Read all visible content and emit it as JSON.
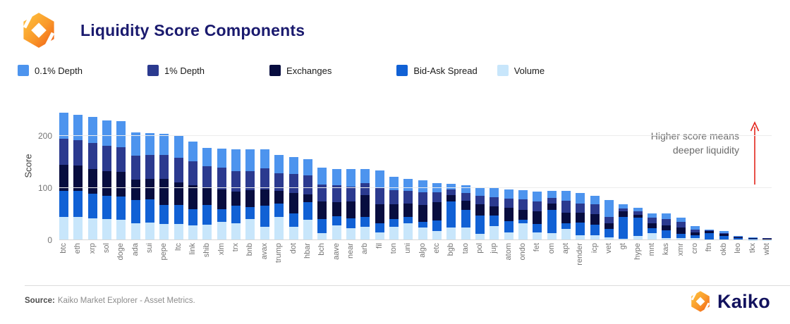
{
  "header": {
    "title": "Liquidity Score Components"
  },
  "footer": {
    "source_label": "Source:",
    "source_text": "Kaiko Market Explorer - Asset Metrics.",
    "brand": "Kaiko"
  },
  "chart_data": {
    "type": "bar",
    "stacked": true,
    "title": "Liquidity Score Components",
    "ylabel": "Score",
    "y_ticks": [
      0,
      100,
      200
    ],
    "ylim": [
      0,
      258
    ],
    "grid": "horizontal",
    "legend_position": "top",
    "annotation": {
      "line1": "Higher score means",
      "line2": "deeper liquidity",
      "arrow": "red-up-arrow"
    },
    "categories": [
      "btc",
      "eth",
      "xrp",
      "sol",
      "doge",
      "ada",
      "sui",
      "pepe",
      "ltc",
      "link",
      "shib",
      "xlm",
      "trx",
      "bnb",
      "avax",
      "trump",
      "dot",
      "hbar",
      "bch",
      "aave",
      "near",
      "arb",
      "fil",
      "ton",
      "uni",
      "algo",
      "etc",
      "bgb",
      "tao",
      "pol",
      "jup",
      "atom",
      "ondo",
      "fet",
      "om",
      "apt",
      "render",
      "icp",
      "vet",
      "gt",
      "hype",
      "mnt",
      "kas",
      "xmr",
      "cro",
      "ftn",
      "okb",
      "leo",
      "tkx",
      "wbt"
    ],
    "stack_order_bottom_to_top": [
      "Volume",
      "Bid-Ask Spread",
      "Exchanges",
      "1% Depth",
      "0.1% Depth"
    ],
    "series": [
      {
        "name": "0.1% Depth",
        "color": "#4D94EE",
        "values": [
          50,
          49,
          50,
          49,
          49,
          45,
          41,
          41,
          42,
          38,
          35,
          37,
          42,
          42,
          36,
          35,
          32,
          31,
          32,
          32,
          34,
          27,
          32,
          26,
          24,
          23,
          18,
          11,
          14,
          17,
          19,
          17,
          18,
          18,
          13,
          18,
          19,
          16,
          32,
          8,
          7,
          9,
          11,
          8,
          7,
          2,
          3,
          1,
          1,
          0.5
        ]
      },
      {
        "name": "1% Depth",
        "color": "#2B3A8F",
        "values": [
          51,
          49,
          49,
          49,
          48,
          46,
          46,
          46,
          47,
          46,
          40,
          41,
          40,
          37,
          40,
          34,
          36,
          37,
          33,
          32,
          29,
          24,
          33,
          27,
          24,
          25,
          19,
          11,
          15,
          16,
          18,
          18,
          20,
          19,
          11,
          23,
          18,
          19,
          12,
          6,
          6,
          10,
          12,
          11,
          5,
          2,
          2,
          1,
          0.5,
          0.5
        ]
      },
      {
        "name": "Exchanges",
        "color": "#070D3F",
        "values": [
          49,
          49,
          48,
          47,
          47,
          39,
          40,
          49,
          44,
          45,
          35,
          38,
          27,
          32,
          32,
          25,
          40,
          15,
          33,
          27,
          32,
          42,
          36,
          29,
          26,
          32,
          35,
          12,
          18,
          21,
          17,
          25,
          19,
          25,
          12,
          20,
          19,
          20,
          12,
          11,
          6,
          10,
          9,
          12,
          5,
          4,
          4,
          2,
          1,
          1
        ]
      },
      {
        "name": "Bid-Ask Spread",
        "color": "#1161D5",
        "values": [
          50,
          50,
          47,
          45,
          45,
          44,
          44,
          37,
          36,
          32,
          37,
          25,
          34,
          24,
          40,
          26,
          25,
          34,
          27,
          18,
          19,
          18,
          18,
          14,
          12,
          11,
          20,
          49,
          34,
          36,
          21,
          22,
          6,
          16,
          44,
          12,
          24,
          21,
          16,
          41,
          35,
          10,
          15,
          8,
          6,
          11,
          6,
          3,
          2,
          1.5
        ]
      },
      {
        "name": "Volume",
        "color": "#C8E6FB",
        "values": [
          45,
          44,
          42,
          40,
          39,
          33,
          34,
          31,
          31,
          28,
          30,
          35,
          32,
          40,
          26,
          44,
          26,
          39,
          14,
          28,
          23,
          26,
          15,
          26,
          32,
          24,
          18,
          25,
          24,
          12,
          27,
          15,
          33,
          15,
          14,
          21,
          10,
          9,
          5,
          3,
          8,
          13,
          4,
          4,
          4,
          2,
          2,
          1,
          0.5,
          0.5
        ]
      }
    ],
    "colors": {
      "title_navy": "#1A1A6E",
      "axis_text": "#757575",
      "annotation_text": "#6B6B6B",
      "arrow_red": "#E3251D"
    }
  }
}
